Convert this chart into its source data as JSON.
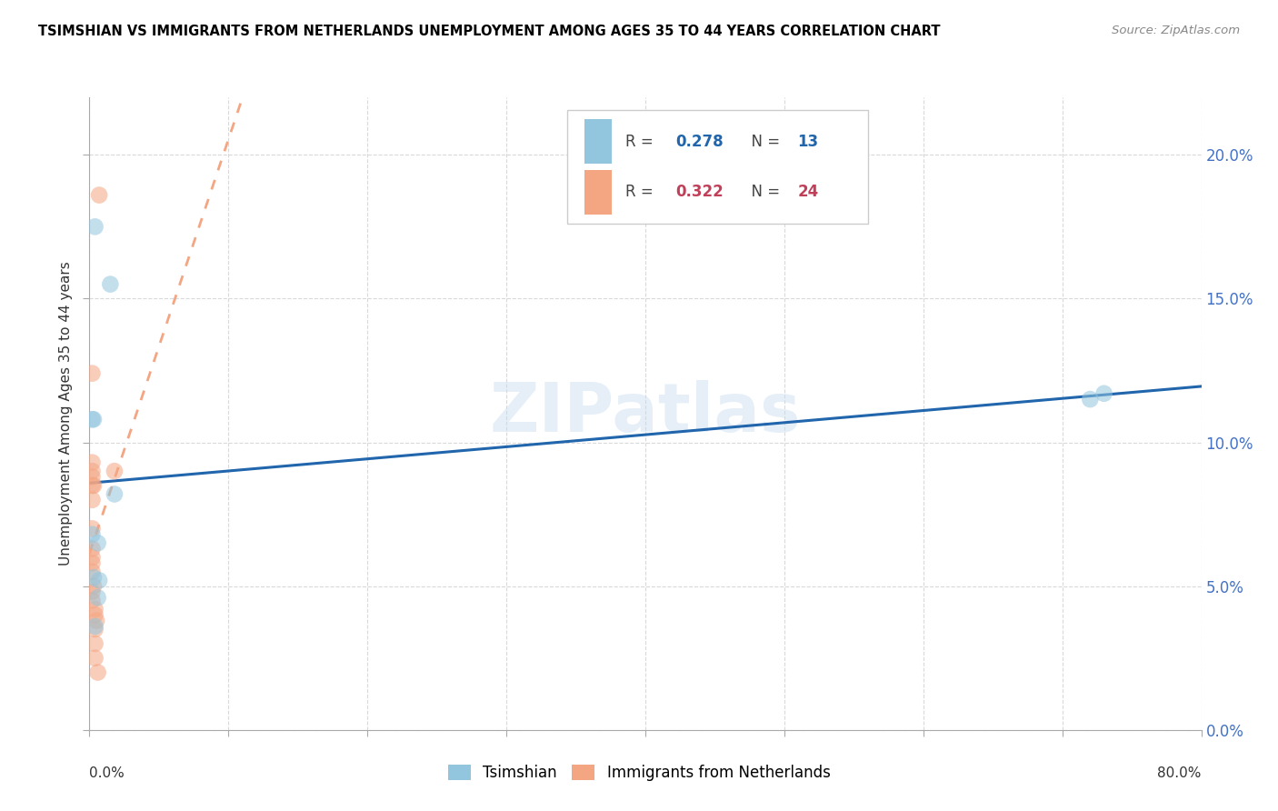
{
  "title": "TSIMSHIAN VS IMMIGRANTS FROM NETHERLANDS UNEMPLOYMENT AMONG AGES 35 TO 44 YEARS CORRELATION CHART",
  "source": "Source: ZipAtlas.com",
  "ylabel": "Unemployment Among Ages 35 to 44 years",
  "xlim": [
    0,
    0.8
  ],
  "ylim": [
    0,
    0.22
  ],
  "x_ticks": [
    0.0,
    0.1,
    0.2,
    0.3,
    0.4,
    0.5,
    0.6,
    0.7,
    0.8
  ],
  "y_ticks": [
    0.0,
    0.05,
    0.1,
    0.15,
    0.2
  ],
  "legend_blue_R": "0.278",
  "legend_blue_N": "13",
  "legend_pink_R": "0.322",
  "legend_pink_N": "24",
  "blue_scatter_color": "#92c5de",
  "pink_scatter_color": "#f4a582",
  "blue_line_color": "#2166ac",
  "pink_line_color": "#d6604d",
  "pink_dash_color": "#f4a582",
  "grid_color": "#d0d0d0",
  "watermark": "ZIPatlas",
  "tsimshian_x": [
    0.004,
    0.015,
    0.002,
    0.003,
    0.002,
    0.006,
    0.003,
    0.007,
    0.006,
    0.004,
    0.018,
    0.72,
    0.73
  ],
  "tsimshian_y": [
    0.175,
    0.155,
    0.108,
    0.108,
    0.068,
    0.065,
    0.053,
    0.052,
    0.046,
    0.036,
    0.082,
    0.115,
    0.117
  ],
  "netherlands_x": [
    0.007,
    0.002,
    0.002,
    0.002,
    0.002,
    0.002,
    0.003,
    0.002,
    0.002,
    0.002,
    0.002,
    0.002,
    0.002,
    0.003,
    0.002,
    0.002,
    0.004,
    0.004,
    0.005,
    0.004,
    0.004,
    0.018,
    0.004,
    0.006
  ],
  "netherlands_y": [
    0.186,
    0.124,
    0.093,
    0.09,
    0.088,
    0.085,
    0.085,
    0.08,
    0.07,
    0.063,
    0.06,
    0.058,
    0.055,
    0.05,
    0.048,
    0.045,
    0.042,
    0.04,
    0.038,
    0.035,
    0.03,
    0.09,
    0.025,
    0.02
  ]
}
